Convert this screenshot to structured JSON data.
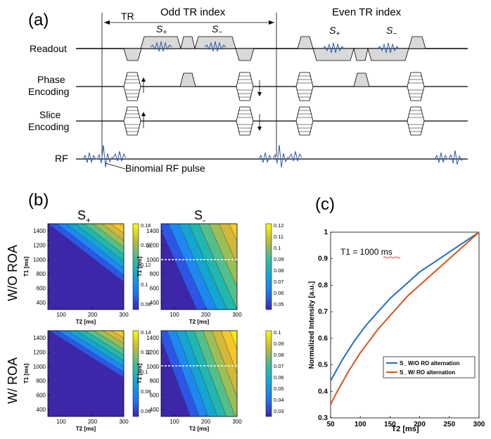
{
  "panel_a": {
    "label": "(a)",
    "tr_label": "TR",
    "odd_label": "Odd TR index",
    "even_label": "Even TR index",
    "s_plus": "S",
    "s_plus_sub": "+",
    "s_minus": "S",
    "s_minus_sub": "−",
    "rows": {
      "readout": "Readout",
      "phase1": "Phase",
      "phase2": "Encoding",
      "slice1": "Slice",
      "slice2": "Encoding",
      "rf": "RF"
    },
    "binomial_label": "Binomial RF pulse"
  },
  "panel_b": {
    "label": "(b)",
    "col1": "S",
    "col1_sub": "+",
    "col2": "S",
    "col2_sub": "-",
    "row1": "W/O ROA",
    "row2": "W/ ROA",
    "xlabel": "T2 [ms]",
    "ylabel": "T1 [ms]",
    "xticks": [
      "100",
      "200",
      "300"
    ],
    "yticks": [
      "1400",
      "1200",
      "1000",
      "800",
      "600",
      "400"
    ],
    "cb_tl": [
      "0.16",
      "0.14",
      "0.12",
      "0.1",
      "0.08"
    ],
    "cb_tr": [
      "0.12",
      "0.11",
      "0.1",
      "0.09",
      "0.08",
      "0.07",
      "0.06",
      "0.05"
    ],
    "cb_bl": [
      "0.14",
      "0.12",
      "0.1",
      "0.08",
      "0.06"
    ],
    "cb_br": [
      "0.1",
      "0.09",
      "0.08",
      "0.07",
      "0.06",
      "0.05",
      "0.04",
      "0.03"
    ]
  },
  "chart_data": {
    "type": "line",
    "label": "(c)",
    "annotation": "T1 = 1000 ms",
    "xlabel": "T2 [ms]",
    "ylabel": "Normalized Intensity [a.u.]",
    "xlim": [
      50,
      300
    ],
    "ylim": [
      0.3,
      1
    ],
    "xticks": [
      "50",
      "100",
      "150",
      "200",
      "250",
      "300"
    ],
    "yticks": [
      "0.3",
      "0.4",
      "0.5",
      "0.6",
      "0.7",
      "0.8",
      "0.9",
      "1"
    ],
    "legend_position": "bottom-right",
    "series": [
      {
        "name": "S_ W/O RO alternation",
        "color": "#1f6fbf",
        "x": [
          50,
          60,
          70,
          80,
          90,
          100,
          110,
          120,
          130,
          140,
          150,
          160,
          170,
          180,
          190,
          200,
          210,
          220,
          230,
          240,
          250,
          260,
          270,
          280,
          290,
          300
        ],
        "y": [
          0.44,
          0.48,
          0.52,
          0.555,
          0.59,
          0.62,
          0.65,
          0.675,
          0.7,
          0.725,
          0.75,
          0.77,
          0.79,
          0.81,
          0.83,
          0.85,
          0.865,
          0.88,
          0.895,
          0.91,
          0.925,
          0.94,
          0.955,
          0.97,
          0.985,
          1.0
        ]
      },
      {
        "name": "S_ W/ RO alternation",
        "color": "#d9541e",
        "x": [
          50,
          60,
          70,
          80,
          90,
          100,
          110,
          120,
          130,
          140,
          150,
          160,
          170,
          180,
          190,
          200,
          210,
          220,
          230,
          240,
          250,
          260,
          270,
          280,
          290,
          300
        ],
        "y": [
          0.35,
          0.395,
          0.435,
          0.475,
          0.51,
          0.545,
          0.575,
          0.605,
          0.635,
          0.66,
          0.685,
          0.71,
          0.735,
          0.76,
          0.78,
          0.8,
          0.82,
          0.84,
          0.86,
          0.88,
          0.9,
          0.92,
          0.94,
          0.96,
          0.98,
          1.0
        ]
      }
    ]
  }
}
